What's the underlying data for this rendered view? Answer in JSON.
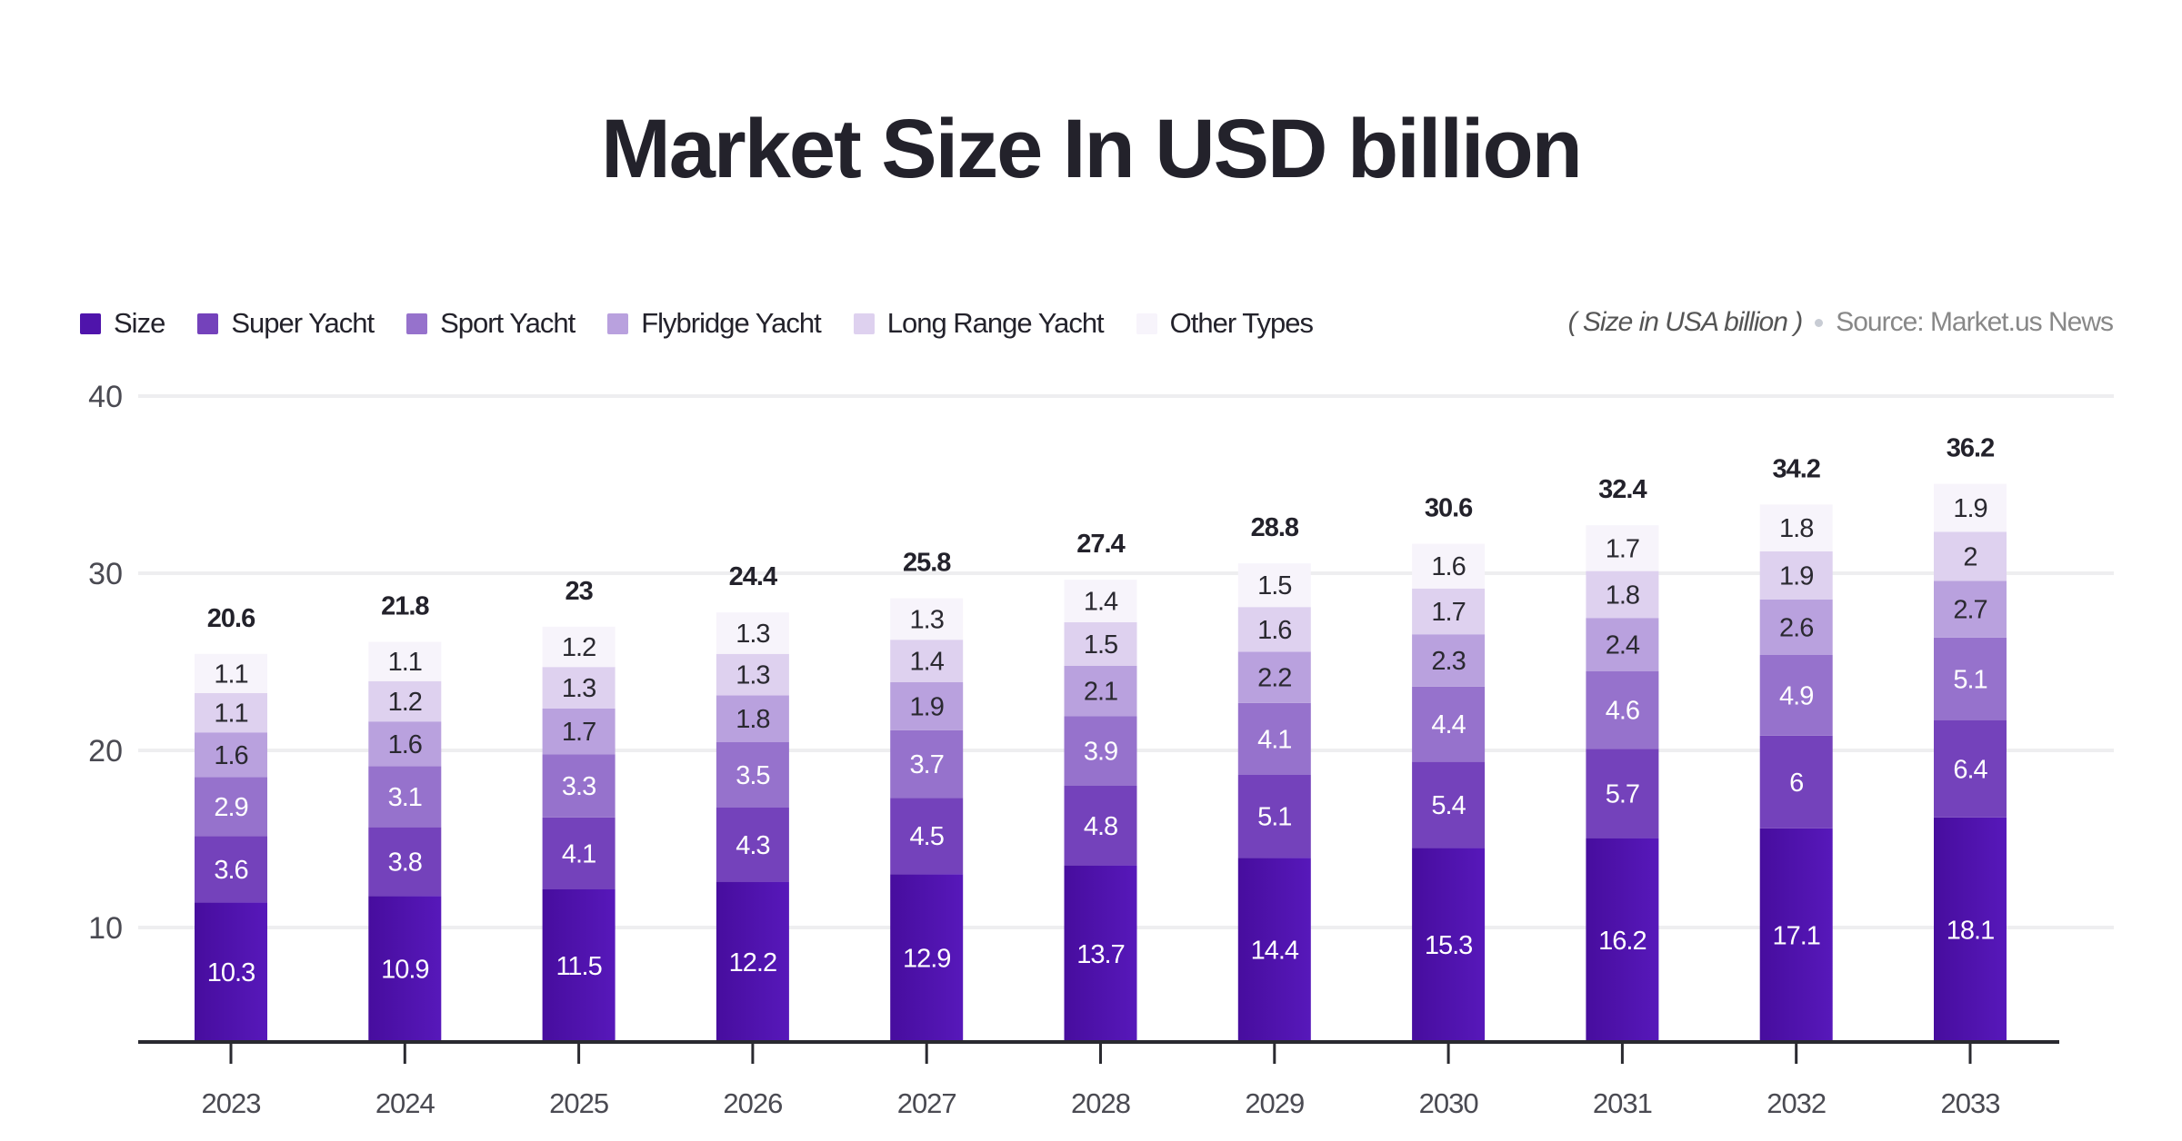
{
  "chart_data": {
    "type": "bar",
    "stacked": true,
    "title": "Market Size In USD billion",
    "note": "( Size in USA billion )",
    "source": "Source: Market.us News",
    "legend_position": "top-left",
    "grid": true,
    "ylim": [
      0,
      40
    ],
    "yticks": [
      10,
      20,
      30,
      40
    ],
    "categories": [
      "2023",
      "2024",
      "2025",
      "2026",
      "2027",
      "2028",
      "2029",
      "2030",
      "2031",
      "2032",
      "2033"
    ],
    "totals": [
      "20.6",
      "21.8",
      "23",
      "24.4",
      "25.8",
      "27.4",
      "28.8",
      "30.6",
      "32.4",
      "34.2",
      "36.2"
    ],
    "series": [
      {
        "name": "Size",
        "color": "#4f14ab",
        "values": [
          10.3,
          10.9,
          11.5,
          12.2,
          12.9,
          13.7,
          14.4,
          15.3,
          16.2,
          17.1,
          18.1
        ]
      },
      {
        "name": "Super Yacht",
        "color": "#7442bb",
        "values": [
          3.6,
          3.8,
          4.1,
          4.3,
          4.5,
          4.8,
          5.1,
          5.4,
          5.7,
          6,
          6.4
        ]
      },
      {
        "name": "Sport Yacht",
        "color": "#9672cc",
        "values": [
          2.9,
          3.1,
          3.3,
          3.5,
          3.7,
          3.9,
          4.1,
          4.4,
          4.6,
          4.9,
          5.1
        ]
      },
      {
        "name": "Flybridge Yacht",
        "color": "#b9a1de",
        "values": [
          1.6,
          1.6,
          1.7,
          1.8,
          1.9,
          2.1,
          2.2,
          2.3,
          2.4,
          2.6,
          2.7
        ]
      },
      {
        "name": "Long Range Yacht",
        "color": "#ded1ef",
        "values": [
          1.1,
          1.2,
          1.3,
          1.3,
          1.4,
          1.5,
          1.6,
          1.7,
          1.8,
          1.9,
          2
        ]
      },
      {
        "name": "Other Types",
        "color": "#f7f4fb",
        "values": [
          1.1,
          1.1,
          1.2,
          1.3,
          1.3,
          1.4,
          1.5,
          1.6,
          1.7,
          1.8,
          1.9
        ]
      }
    ]
  }
}
